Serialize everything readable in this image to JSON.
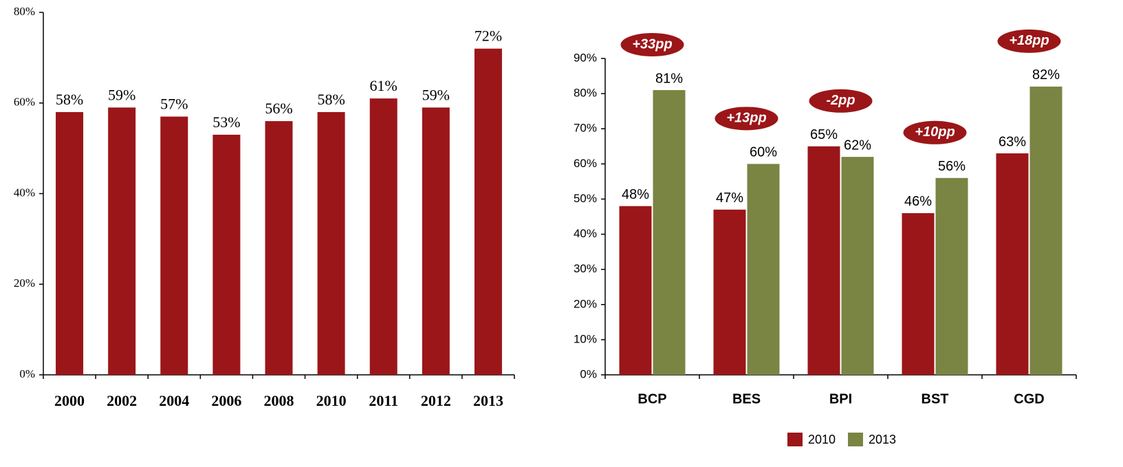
{
  "chart_data": [
    {
      "type": "bar",
      "categories": [
        "2000",
        "2002",
        "2004",
        "2006",
        "2008",
        "2010",
        "2011",
        "2012",
        "2013"
      ],
      "values": [
        58,
        59,
        57,
        53,
        56,
        58,
        61,
        59,
        72
      ],
      "value_labels": [
        "58%",
        "59%",
        "57%",
        "53%",
        "56%",
        "58%",
        "61%",
        "59%",
        "72%"
      ],
      "color": "#9b1618",
      "ylim": [
        0,
        80
      ],
      "yticks": [
        {
          "value": 0,
          "label": "0%"
        },
        {
          "value": 20,
          "label": "20%"
        },
        {
          "value": 40,
          "label": "40%"
        },
        {
          "value": 60,
          "label": "60%"
        },
        {
          "value": 80,
          "label": "80%"
        }
      ]
    },
    {
      "type": "grouped_bar",
      "categories": [
        "BCP",
        "BES",
        "BPI",
        "BST",
        "CGD"
      ],
      "series": [
        {
          "name": "2010",
          "color": "#9b1618",
          "values": [
            48,
            47,
            65,
            46,
            63
          ],
          "value_labels": [
            "48%",
            "47%",
            "65%",
            "46%",
            "63%"
          ]
        },
        {
          "name": "2013",
          "color": "#7a8443",
          "values": [
            81,
            60,
            62,
            56,
            82
          ],
          "value_labels": [
            "81%",
            "60%",
            "62%",
            "56%",
            "82%"
          ]
        }
      ],
      "annotations": [
        "+33pp",
        "+13pp",
        "-2pp",
        "+10pp",
        "+18pp"
      ],
      "ylim": [
        0,
        90
      ],
      "yticks": [
        {
          "value": 0,
          "label": "0%"
        },
        {
          "value": 10,
          "label": "10%"
        },
        {
          "value": 20,
          "label": "20%"
        },
        {
          "value": 30,
          "label": "30%"
        },
        {
          "value": 40,
          "label": "40%"
        },
        {
          "value": 50,
          "label": "50%"
        },
        {
          "value": 60,
          "label": "60%"
        },
        {
          "value": 70,
          "label": "70%"
        },
        {
          "value": 80,
          "label": "80%"
        },
        {
          "value": 90,
          "label": "90%"
        }
      ],
      "legend": "bottom"
    }
  ]
}
